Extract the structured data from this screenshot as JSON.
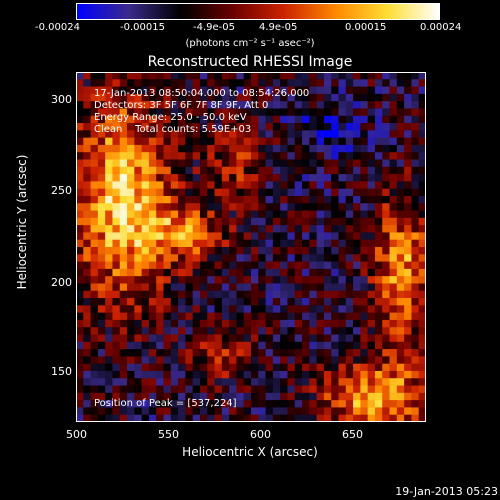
{
  "colorbar": {
    "ticks": [
      "-0.00024",
      "-0.00015",
      "-4.9e-05",
      "4.9e-05",
      "0.00015",
      "0.00024"
    ],
    "unit_label": "(photons cm⁻² s⁻¹ asec⁻²)",
    "colors": [
      "#0000ff",
      "#3a2a8a",
      "#000000",
      "#6a0000",
      "#cc2200",
      "#ff8800",
      "#ffdd33",
      "#ffffff"
    ]
  },
  "footer": {
    "date": "19-Jan-2013 05:23"
  },
  "chart_data": {
    "type": "heatmap",
    "title": "Reconstructed RHESSI Image",
    "xlabel": "Heliocentric X (arcsec)",
    "ylabel": "Heliocentric Y (arcsec)",
    "xlim": [
      500,
      690
    ],
    "ylim": [
      120,
      312
    ],
    "xticks": [
      "500",
      "550",
      "600",
      "650"
    ],
    "yticks": [
      "150",
      "200",
      "250",
      "300"
    ],
    "annotations": {
      "time": "17-Jan-2013 08:50:04.000 to 08:54:26.000",
      "detectors": "Detectors: 3F 5F 6F 7F 8F 9F, Att 0",
      "energy": "Energy Range: 25.0 - 50.0 keV",
      "clean": "Clean    Total counts: 5.59E+03",
      "peak": "Position of Peak = [537,224]"
    },
    "peak_position": [
      537,
      224
    ],
    "value_range": [
      -0.00024,
      0.00024
    ]
  }
}
